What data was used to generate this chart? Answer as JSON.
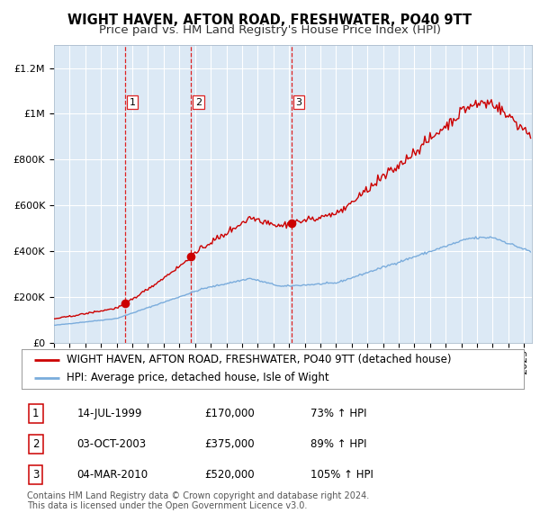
{
  "title": "WIGHT HAVEN, AFTON ROAD, FRESHWATER, PO40 9TT",
  "subtitle": "Price paid vs. HM Land Registry's House Price Index (HPI)",
  "legend_red": "WIGHT HAVEN, AFTON ROAD, FRESHWATER, PO40 9TT (detached house)",
  "legend_blue": "HPI: Average price, detached house, Isle of Wight",
  "transactions": [
    {
      "num": 1,
      "date": "14-JUL-1999",
      "price": 170000,
      "pct": "73%",
      "dir": "↑"
    },
    {
      "num": 2,
      "date": "03-OCT-2003",
      "price": 375000,
      "pct": "89%",
      "dir": "↑"
    },
    {
      "num": 3,
      "date": "04-MAR-2010",
      "price": 520000,
      "pct": "105%",
      "dir": "↑"
    }
  ],
  "transaction_dates_decimal": [
    1999.54,
    2003.75,
    2010.17
  ],
  "transaction_prices": [
    170000,
    375000,
    520000
  ],
  "red_color": "#cc0000",
  "blue_color": "#7aacdc",
  "plot_bg": "#dce9f5",
  "dashed_line_color": "#dd2222",
  "ylim": [
    0,
    1300000
  ],
  "xlim_start": 1995.0,
  "xlim_end": 2025.5,
  "footer": "Contains HM Land Registry data © Crown copyright and database right 2024.\nThis data is licensed under the Open Government Licence v3.0.",
  "title_fontsize": 10.5,
  "subtitle_fontsize": 9.5,
  "tick_fontsize": 8,
  "legend_fontsize": 8.5,
  "table_fontsize": 8.5,
  "footer_fontsize": 7
}
